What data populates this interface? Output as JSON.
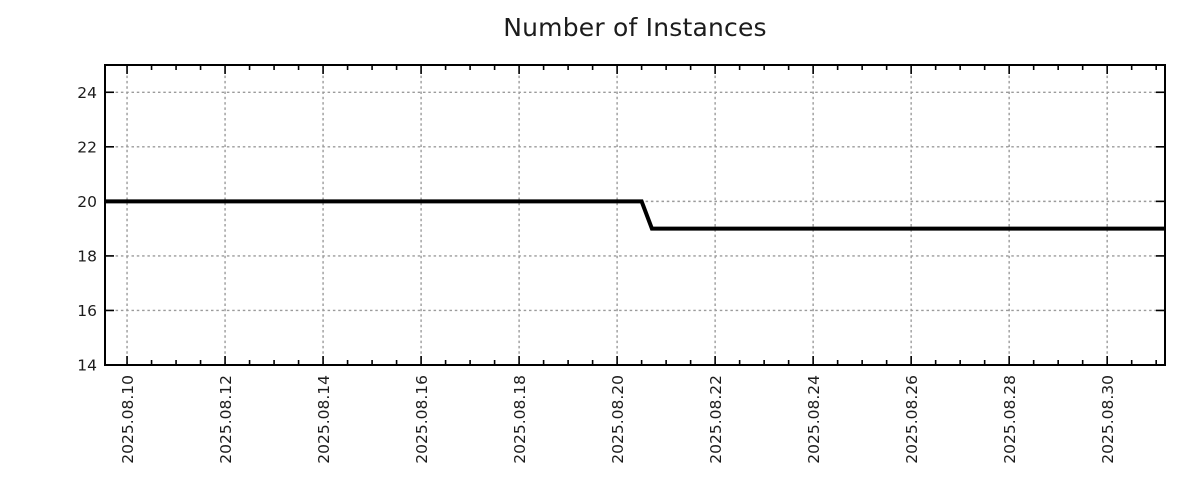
{
  "chart_data": {
    "type": "line",
    "title": "Number of Instances",
    "x_tick_labels": [
      "2025.08.10",
      "2025.08.12",
      "2025.08.14",
      "2025.08.16",
      "2025.08.18",
      "2025.08.20",
      "2025.08.22",
      "2025.08.24",
      "2025.08.26",
      "2025.08.28",
      "2025.08.30"
    ],
    "x_tick_values": [
      10,
      12,
      14,
      16,
      18,
      20,
      22,
      24,
      26,
      28,
      30
    ],
    "x_minor_step": 0.5,
    "xlim": [
      9.55,
      31.18
    ],
    "x_unit": "day of month, August 2025",
    "y_tick_labels": [
      "14",
      "16",
      "18",
      "20",
      "22",
      "24"
    ],
    "y_tick_values": [
      14,
      16,
      18,
      20,
      22,
      24
    ],
    "ylim": [
      14,
      25.0
    ],
    "xlabel": "",
    "ylabel": "",
    "legend": "none",
    "grid": "dotted gray lines at major ticks, mirrored inward tick marks on all four borders",
    "background_color": "#ffffff",
    "text_color": "#1c1c1c",
    "grid_color": "#9b9b9b",
    "series": [
      {
        "name": "Number of Instances",
        "color": "#000000",
        "line_width": 4,
        "points": [
          [
            9.55,
            20
          ],
          [
            20.5,
            20
          ],
          [
            20.71,
            19
          ],
          [
            31.18,
            19
          ]
        ],
        "description": "Constant at 20 instances from the left edge until 2025.08.20 ~12:00, then steps down to 19 by 2025.08.20 ~17:00 and stays at 19 through the right edge."
      }
    ]
  }
}
